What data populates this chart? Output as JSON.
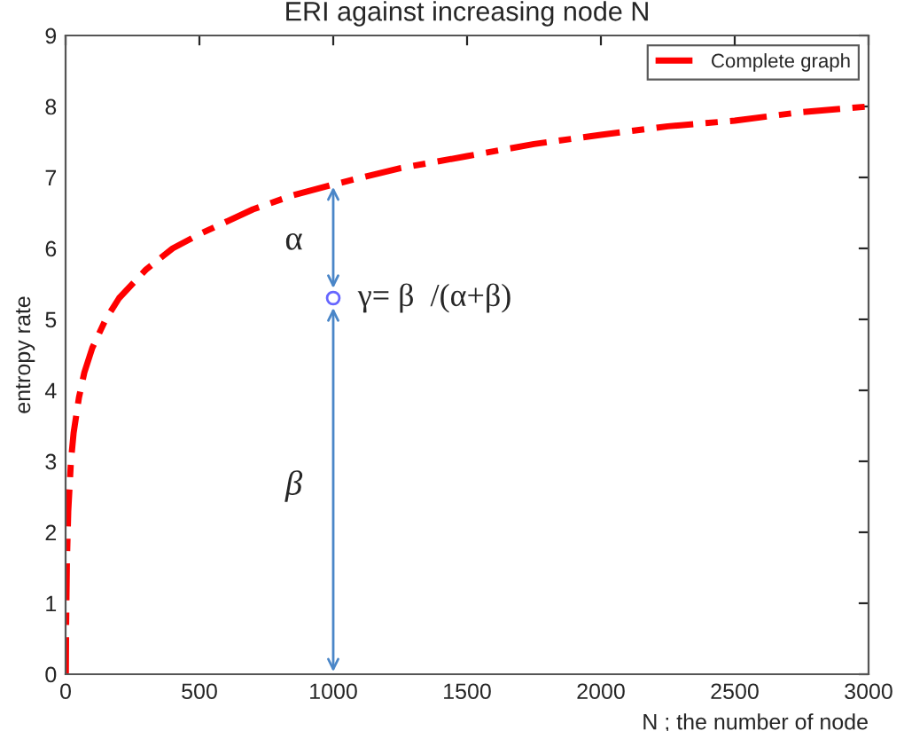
{
  "chart_data": {
    "type": "line",
    "title": "ERI against increasing node N",
    "xlabel": "N ; the number of node",
    "ylabel": "entropy rate",
    "series": [
      {
        "name": "Complete graph",
        "color": "#ff0000",
        "x": [
          1,
          2,
          5,
          10,
          20,
          30,
          50,
          70,
          100,
          150,
          200,
          300,
          400,
          500,
          700,
          850,
          1000,
          1250,
          1500,
          1750,
          2000,
          2250,
          2500,
          2750,
          3000
        ],
        "values": [
          0,
          0.7,
          1.6,
          2.3,
          3.0,
          3.4,
          3.9,
          4.25,
          4.6,
          5.0,
          5.3,
          5.7,
          6.0,
          6.2,
          6.55,
          6.75,
          6.9,
          7.13,
          7.3,
          7.47,
          7.6,
          7.72,
          7.8,
          7.92,
          8.0
        ]
      },
      {
        "type": "scatter",
        "color": "#6666ff",
        "x": [
          1000
        ],
        "values": [
          5.3
        ]
      }
    ],
    "annotations": [
      {
        "text": "γ= β  /(α+β)",
        "x": 1000,
        "y": 5.3
      },
      "α",
      "β"
    ],
    "xlim": [
      0,
      3000
    ],
    "xticks": [
      0,
      500,
      1000,
      1500,
      2000,
      2500,
      3000
    ],
    "ylim": [
      0,
      9
    ],
    "yticks": [
      0,
      1,
      2,
      3,
      4,
      5,
      6,
      7,
      8,
      9
    ],
    "grid": false,
    "legend": "top right",
    "line_style": "dashed"
  }
}
